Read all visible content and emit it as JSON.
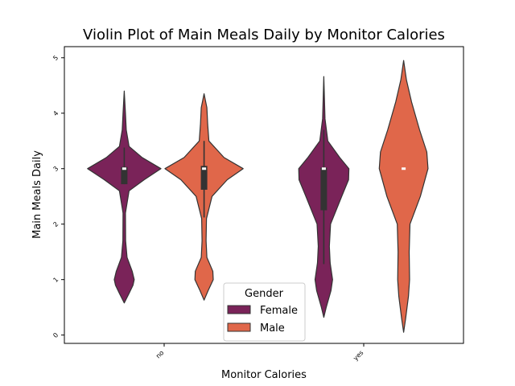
{
  "chart_data": {
    "type": "violin",
    "title": "Violin Plot of Main Meals Daily by Monitor Calories",
    "xlabel": "Monitor Calories",
    "ylabel": "Main Meals Daily",
    "categories": [
      "no",
      "yes"
    ],
    "yticks": [
      0,
      1,
      2,
      3,
      4,
      5
    ],
    "ylim": [
      -0.15,
      5.2
    ],
    "grid": false,
    "legend": {
      "title": "Gender",
      "placement": "lower center"
    },
    "series": [
      {
        "name": "Female",
        "color": "#7a2359",
        "violins": [
          {
            "category": "no",
            "min": 0.58,
            "max": 4.4,
            "q1": 2.72,
            "median": 3.0,
            "q3": 3.03,
            "whisker_low": 2.72,
            "whisker_high": 3.38,
            "density": [
              [
                0.58,
                0.0
              ],
              [
                0.75,
                0.12
              ],
              [
                0.9,
                0.22
              ],
              [
                1.0,
                0.25
              ],
              [
                1.15,
                0.2
              ],
              [
                1.4,
                0.07
              ],
              [
                1.7,
                0.035
              ],
              [
                2.2,
                0.03
              ],
              [
                2.6,
                0.12
              ],
              [
                2.8,
                0.5
              ],
              [
                3.0,
                0.92
              ],
              [
                3.2,
                0.45
              ],
              [
                3.4,
                0.12
              ],
              [
                3.7,
                0.05
              ],
              [
                4.0,
                0.03
              ],
              [
                4.4,
                0.0
              ]
            ]
          },
          {
            "category": "yes",
            "min": 0.32,
            "max": 4.66,
            "q1": 2.25,
            "median": 3.0,
            "q3": 3.02,
            "whisker_low": 1.28,
            "whisker_high": 3.7,
            "density": [
              [
                0.32,
                0.0
              ],
              [
                0.5,
                0.06
              ],
              [
                0.8,
                0.18
              ],
              [
                1.0,
                0.22
              ],
              [
                1.3,
                0.16
              ],
              [
                1.6,
                0.14
              ],
              [
                2.0,
                0.17
              ],
              [
                2.5,
                0.45
              ],
              [
                2.8,
                0.62
              ],
              [
                3.0,
                0.63
              ],
              [
                3.2,
                0.4
              ],
              [
                3.5,
                0.1
              ],
              [
                3.9,
                0.03
              ],
              [
                4.66,
                0.0
              ]
            ]
          }
        ]
      },
      {
        "name": "Male",
        "color": "#e0674a",
        "violins": [
          {
            "category": "no",
            "min": 0.63,
            "max": 4.35,
            "q1": 2.62,
            "median": 3.0,
            "q3": 3.05,
            "whisker_low": 2.12,
            "whisker_high": 3.5,
            "density": [
              [
                0.63,
                0.0
              ],
              [
                0.8,
                0.1
              ],
              [
                1.0,
                0.23
              ],
              [
                1.15,
                0.22
              ],
              [
                1.4,
                0.07
              ],
              [
                1.7,
                0.05
              ],
              [
                2.1,
                0.06
              ],
              [
                2.5,
                0.2
              ],
              [
                2.8,
                0.58
              ],
              [
                3.0,
                0.98
              ],
              [
                3.2,
                0.5
              ],
              [
                3.5,
                0.12
              ],
              [
                3.8,
                0.09
              ],
              [
                4.1,
                0.07
              ],
              [
                4.35,
                0.0
              ]
            ]
          },
          {
            "category": "yes",
            "min": 0.05,
            "max": 4.95,
            "q1": 3.0,
            "median": 3.0,
            "q3": 3.0,
            "whisker_low": 3.0,
            "whisker_high": 3.0,
            "density": [
              [
                0.05,
                0.0
              ],
              [
                0.3,
                0.05
              ],
              [
                0.7,
                0.12
              ],
              [
                1.0,
                0.15
              ],
              [
                1.5,
                0.14
              ],
              [
                2.0,
                0.16
              ],
              [
                2.5,
                0.42
              ],
              [
                3.0,
                0.61
              ],
              [
                3.3,
                0.58
              ],
              [
                3.7,
                0.4
              ],
              [
                4.2,
                0.2
              ],
              [
                4.6,
                0.07
              ],
              [
                4.95,
                0.0
              ]
            ]
          }
        ]
      }
    ]
  }
}
